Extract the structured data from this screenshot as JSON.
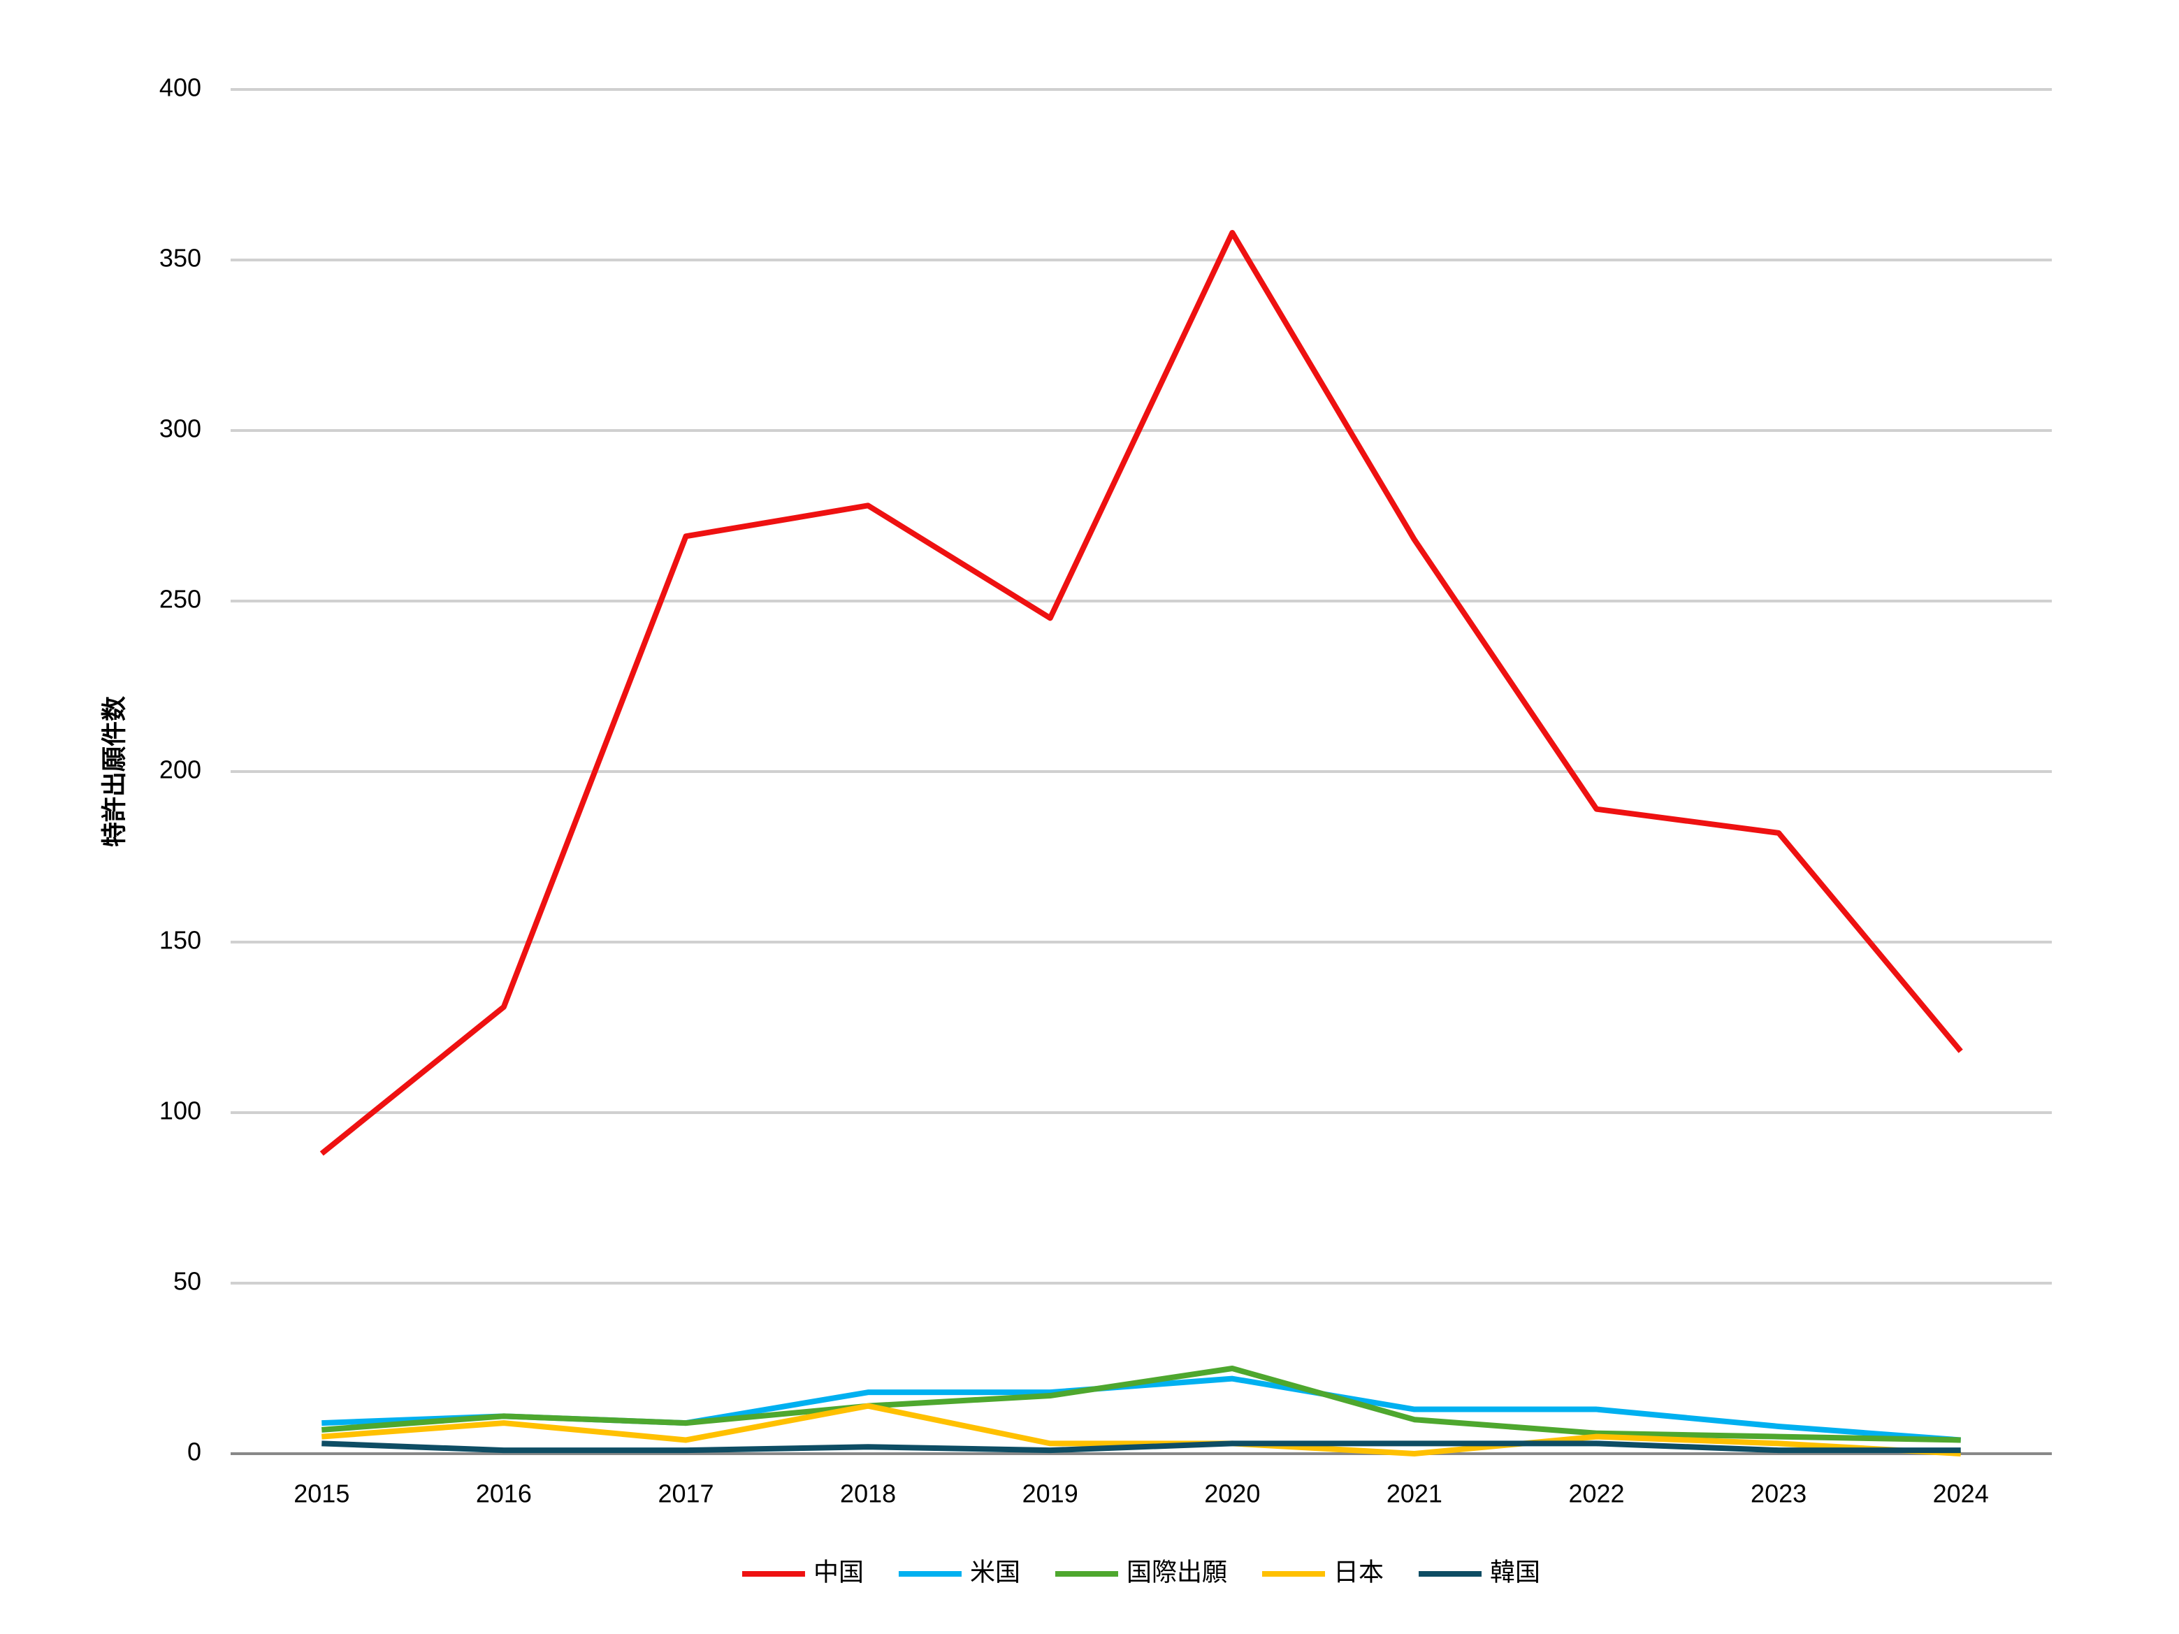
{
  "chart_data": {
    "type": "line",
    "y_label": "特許出願件数",
    "categories": [
      "2015",
      "2016",
      "2017",
      "2018",
      "2019",
      "2020",
      "2021",
      "2022",
      "2023",
      "2024"
    ],
    "series": [
      {
        "name": "中国",
        "color": "#ee1111",
        "values": [
          88,
          131,
          269,
          278,
          245,
          358,
          268,
          189,
          182,
          118
        ]
      },
      {
        "name": "米国",
        "color": "#00b0f0",
        "values": [
          9,
          11,
          9,
          18,
          18,
          22,
          13,
          13,
          8,
          4
        ]
      },
      {
        "name": "国際出願",
        "color": "#4ea72e",
        "values": [
          7,
          11,
          9,
          14,
          17,
          25,
          10,
          6,
          5,
          4
        ]
      },
      {
        "name": "日本",
        "color": "#ffc000",
        "values": [
          5,
          9,
          4,
          14,
          3,
          3,
          0,
          5,
          3,
          0
        ]
      },
      {
        "name": "韓国",
        "color": "#0e4d64",
        "values": [
          3,
          1,
          1,
          2,
          1,
          3,
          3,
          3,
          1,
          1
        ]
      }
    ],
    "ylim": [
      0,
      400
    ],
    "yticks": [
      0,
      50,
      100,
      150,
      200,
      250,
      300,
      350,
      400
    ],
    "grid": true,
    "legend": "bottom"
  }
}
